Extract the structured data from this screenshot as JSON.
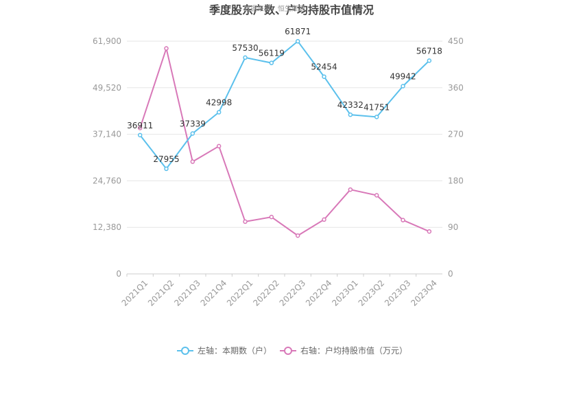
{
  "chart_data": {
    "type": "line",
    "title": "季度股东户数、户均持股市值情况",
    "watermark": "数据来源：恒生聚源",
    "categories": [
      "2021Q1",
      "2021Q2",
      "2021Q3",
      "2021Q4",
      "2022Q1",
      "2022Q2",
      "2022Q3",
      "2022Q4",
      "2023Q1",
      "2023Q2",
      "2023Q3",
      "2023Q4"
    ],
    "left_axis": {
      "ylim": [
        0,
        61900
      ],
      "ticks": [
        "0",
        "12,380",
        "24,760",
        "37,140",
        "49,520",
        "61,900"
      ]
    },
    "right_axis": {
      "ylim": [
        0,
        450
      ],
      "ticks": [
        "0",
        "90",
        "180",
        "270",
        "360",
        "450"
      ]
    },
    "series": [
      {
        "name": "左轴：本期数（户）",
        "axis": "left",
        "color": "#5bc0ec",
        "values": [
          36911,
          27955,
          37339,
          42998,
          57530,
          56119,
          61871,
          52454,
          42332,
          41751,
          49942,
          56718
        ],
        "labels": [
          "36911",
          "27955",
          "37339",
          "42998",
          "57530",
          "56119",
          "61871",
          "52454",
          "42332",
          "41751",
          "49942",
          "56718"
        ]
      },
      {
        "name": "右轴：户均持股市值（万元）",
        "axis": "right",
        "color": "#d878b8",
        "values": [
          282,
          436,
          217,
          247,
          101,
          110,
          74,
          105,
          163,
          152,
          104,
          82
        ]
      }
    ],
    "grid": true,
    "legend": "bottom"
  }
}
